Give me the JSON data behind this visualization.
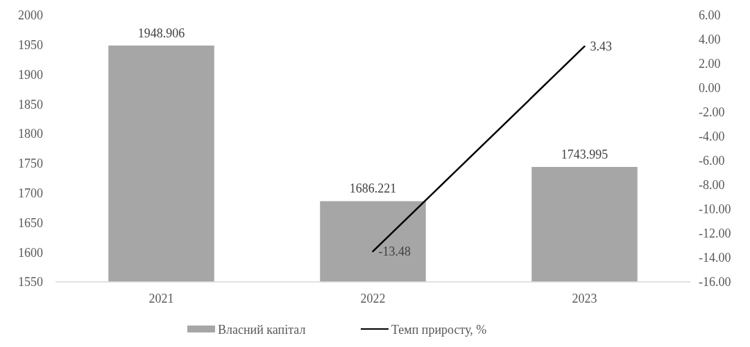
{
  "chart_data": {
    "type": "bar",
    "categories": [
      "2021",
      "2022",
      "2023"
    ],
    "series": [
      {
        "name": "Власний капітал",
        "color": "#a6a6a6",
        "values": [
          1948.906,
          1686.221,
          1743.995
        ]
      },
      {
        "name": "Темп приросту, %",
        "type": "line",
        "axis": "y2",
        "color": "#000000",
        "values": [
          null,
          -13.48,
          3.43
        ]
      }
    ],
    "ylim": [
      1550,
      2000
    ],
    "yticks": [
      1550,
      1600,
      1650,
      1700,
      1750,
      1800,
      1850,
      1900,
      1950,
      2000
    ],
    "y2lim": [
      -16,
      6
    ],
    "y2ticks": [
      {
        "value": -16,
        "label": "-16.00"
      },
      {
        "value": -14,
        "label": "-14.00"
      },
      {
        "value": -12,
        "label": "-12.00"
      },
      {
        "value": -10,
        "label": "-10.00"
      },
      {
        "value": -8,
        "label": "-8.00"
      },
      {
        "value": -6,
        "label": "-6.00"
      },
      {
        "value": -4,
        "label": "-4.00"
      },
      {
        "value": -2,
        "label": "-2.00"
      },
      {
        "value": 0,
        "label": "0.00"
      },
      {
        "value": 2,
        "label": "2.00"
      },
      {
        "value": 4,
        "label": "4.00"
      },
      {
        "value": 6,
        "label": "6.00"
      }
    ],
    "data_labels": true,
    "legend": "bottom",
    "marker": "none",
    "line_style": "solid"
  }
}
